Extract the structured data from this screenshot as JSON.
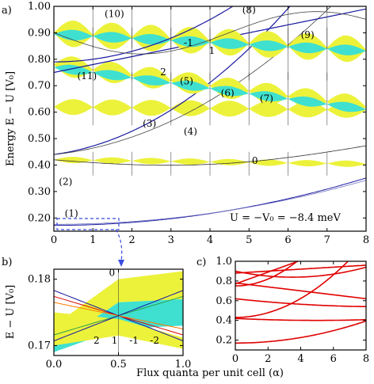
{
  "panel_labels": {
    "a": "a)",
    "b": "b)",
    "c": "c)"
  },
  "annotation": "U = −V₀ = −8.4 meV",
  "xlabel": "Flux quanta per unit cell (α)",
  "chart_data": [
    {
      "id": "a",
      "type": "scatter",
      "ylabel": "Energy E − U [V₀]",
      "xlim": [
        0,
        8
      ],
      "ylim": [
        0.15,
        1.0
      ],
      "xticks": [
        "0",
        "1",
        "2",
        "3",
        "4",
        "5",
        "6",
        "7",
        "8"
      ],
      "yticks": [
        "0.20",
        "0.30",
        "0.40",
        "0.50",
        "0.60",
        "0.70",
        "0.80",
        "0.90",
        "1.00"
      ],
      "band_labels": [
        {
          "text": "(1)",
          "x": 0.45,
          "y": 0.205
        },
        {
          "text": "(2)",
          "x": 0.3,
          "y": 0.325
        },
        {
          "text": "(3)",
          "x": 2.45,
          "y": 0.545
        },
        {
          "text": "(4)",
          "x": 3.5,
          "y": 0.515
        },
        {
          "text": "(5)",
          "x": 3.4,
          "y": 0.705
        },
        {
          "text": "(6)",
          "x": 4.45,
          "y": 0.66
        },
        {
          "text": "(7)",
          "x": 5.45,
          "y": 0.64
        },
        {
          "text": "(8)",
          "x": 5.0,
          "y": 0.975
        },
        {
          "text": "(9)",
          "x": 6.5,
          "y": 0.88
        },
        {
          "text": "(10)",
          "x": 1.55,
          "y": 0.96
        },
        {
          "text": "(11)",
          "x": 0.85,
          "y": 0.725
        },
        {
          "text": "0",
          "x": 5.15,
          "y": 0.405
        },
        {
          "text": "-1",
          "x": 3.45,
          "y": 0.85
        },
        {
          "text": "1",
          "x": 4.05,
          "y": 0.82
        },
        {
          "text": "2",
          "x": 2.8,
          "y": 0.74
        }
      ],
      "annotation_position": [
        6.05,
        0.225
      ]
    },
    {
      "id": "b",
      "type": "scatter",
      "ylabel": "E − U [V₀]",
      "xlim": [
        0.0,
        1.0
      ],
      "ylim": [
        0.1685,
        0.1815
      ],
      "xticks": [
        "0.0",
        "0.5",
        "1.0"
      ],
      "yticks": [
        "0.17",
        "0.18"
      ],
      "band_labels": [
        {
          "text": "0",
          "x": 0.45,
          "y": 0.1805
        },
        {
          "text": "2",
          "x": 0.33,
          "y": 0.1703
        },
        {
          "text": "1",
          "x": 0.47,
          "y": 0.1703
        },
        {
          "text": "-1",
          "x": 0.62,
          "y": 0.1703
        },
        {
          "text": "-2",
          "x": 0.78,
          "y": 0.1703
        }
      ]
    },
    {
      "id": "c",
      "type": "line",
      "xlim": [
        0,
        8
      ],
      "ylim": [
        0.1,
        1.0
      ],
      "xticks": [
        "0",
        "2",
        "4",
        "6",
        "8"
      ],
      "yticks": [
        "0.2",
        "0.4",
        "0.6",
        "0.8",
        "1.0"
      ],
      "series_color": "#e00000"
    }
  ],
  "colors": {
    "yellow": "#ecf23a",
    "cyan": "#3fe0d0",
    "blue": "#1a1aa0",
    "red": "#e00000",
    "orange": "#ff7a00",
    "green": "#2aa04a",
    "arrow": "#3a4be0"
  }
}
